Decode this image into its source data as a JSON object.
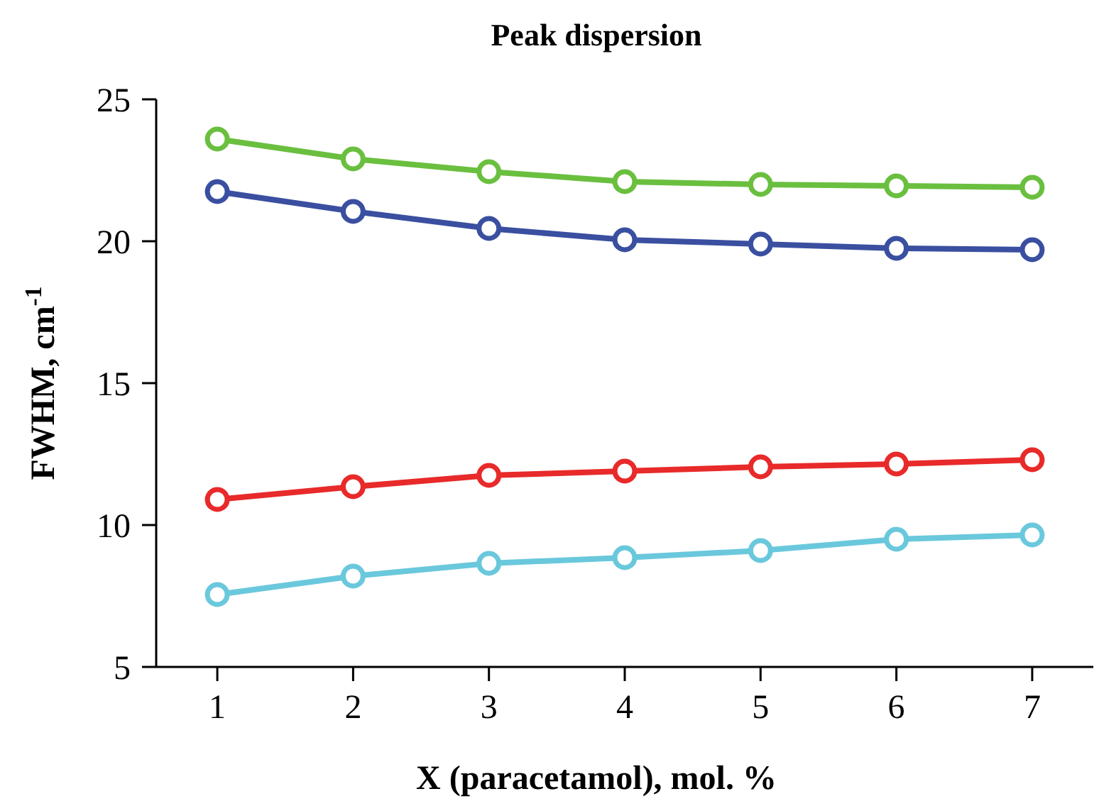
{
  "chart_data": {
    "type": "line",
    "title": "Peak dispersion",
    "xlabel": "X (paracetamol), mol. %",
    "ylabel": "FWHM, cm$^{-1}$",
    "x": [
      1,
      2,
      3,
      4,
      5,
      6,
      7
    ],
    "series": [
      {
        "color": "#6abf3f",
        "values": [
          23.6,
          22.9,
          22.45,
          22.1,
          22.0,
          21.95,
          21.9
        ]
      },
      {
        "color": "#3a4fa0",
        "values": [
          21.75,
          21.05,
          20.45,
          20.05,
          19.9,
          19.75,
          19.7
        ]
      },
      {
        "color": "#e82a2a",
        "values": [
          10.9,
          11.35,
          11.75,
          11.9,
          12.05,
          12.15,
          12.3
        ]
      },
      {
        "color": "#6ac8dc",
        "values": [
          7.55,
          8.2,
          8.65,
          8.85,
          9.1,
          9.5,
          9.65
        ]
      }
    ],
    "xlim": [
      0.55,
      7.45
    ],
    "xticks": [
      1,
      2,
      3,
      4,
      5,
      6,
      7
    ],
    "ylim": [
      5,
      25
    ],
    "yticks": [
      5,
      10,
      15,
      20,
      25
    ],
    "marker": "circle",
    "line_style": "solid"
  }
}
